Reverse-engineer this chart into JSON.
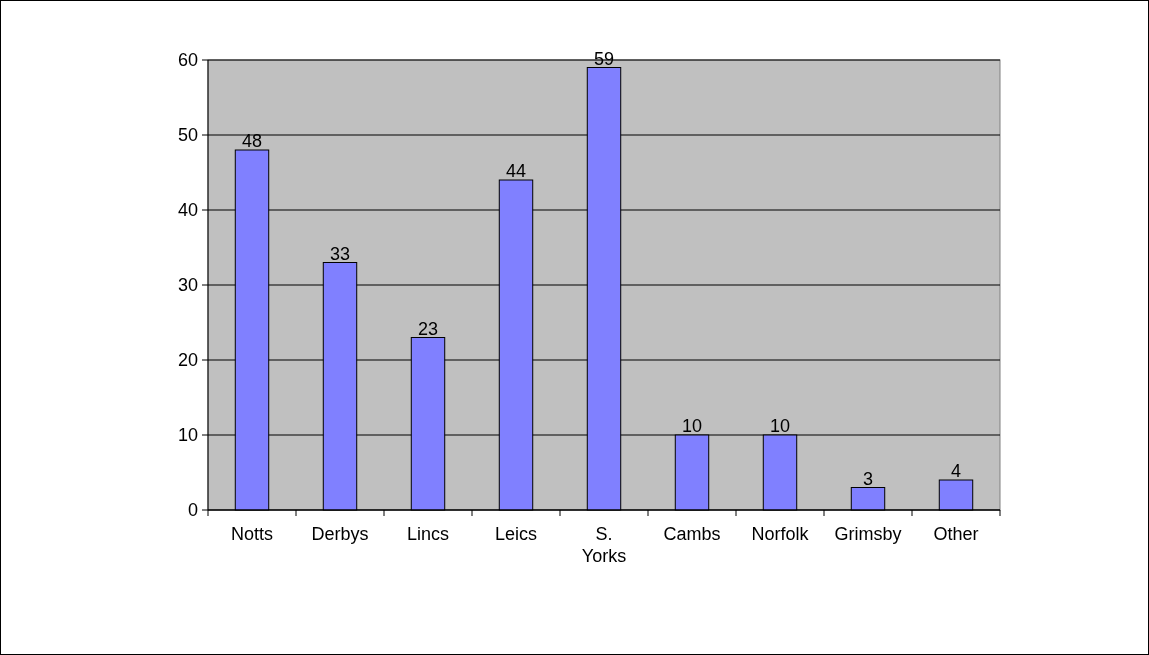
{
  "chart_data": {
    "type": "bar",
    "categories": [
      "Notts",
      "Derbys",
      "Lincs",
      "Leics",
      "S. Yorks",
      "Cambs",
      "Norfolk",
      "Grimsby",
      "Other"
    ],
    "values": [
      48,
      33,
      23,
      44,
      59,
      10,
      10,
      3,
      4
    ],
    "color": "#8080ff",
    "ylim": [
      0,
      60
    ],
    "yticks": [
      0,
      10,
      20,
      30,
      40,
      50,
      60
    ],
    "grid": "y",
    "data_labels": true
  }
}
